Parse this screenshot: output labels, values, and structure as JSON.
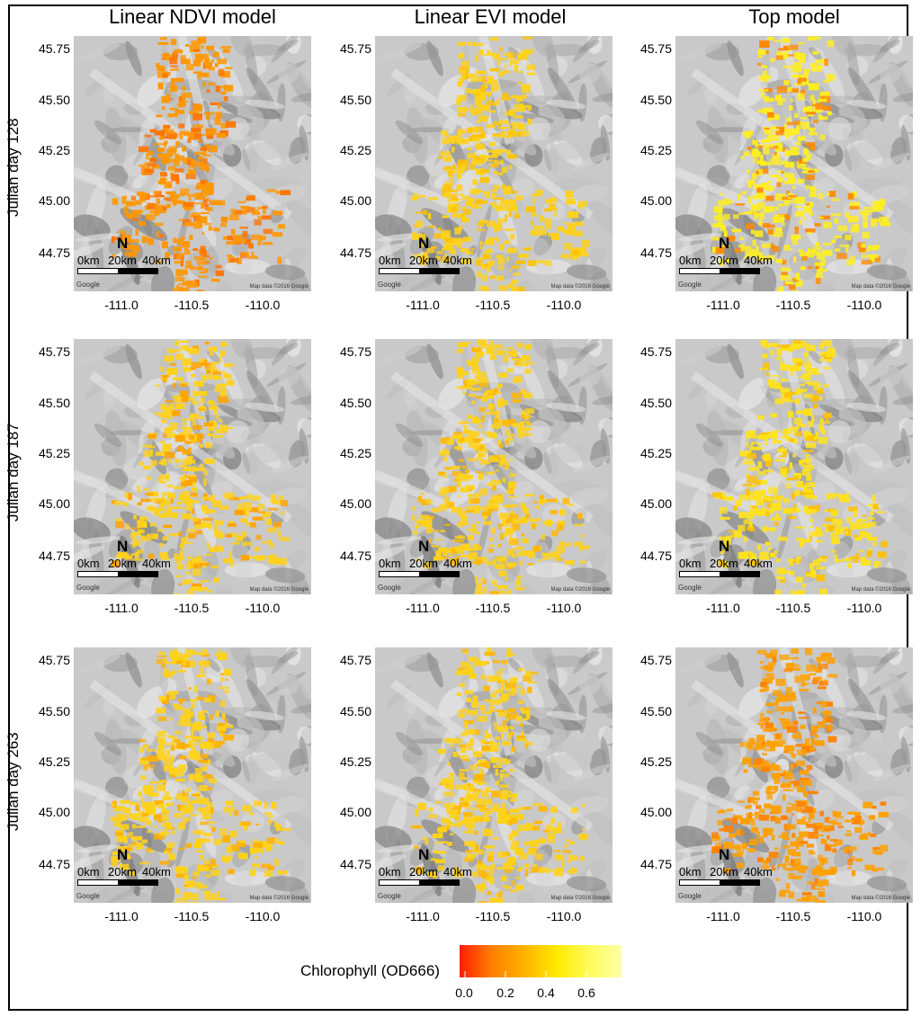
{
  "column_titles": [
    "Linear NDVI model",
    "Linear EVI model",
    "Top model"
  ],
  "row_titles": [
    "Julian day 128",
    "Julian day 187",
    "Julian day 263"
  ],
  "y_ticks": [
    "45.75",
    "45.50",
    "45.25",
    "45.00",
    "44.75"
  ],
  "x_ticks": [
    "-111.0",
    "-110.5",
    "-110.0"
  ],
  "scale_labels": [
    "0km",
    "20km",
    "40km"
  ],
  "north_symbol": "N",
  "credit_google": "Google",
  "credit_right": "Map data ©2016 Google",
  "legend": {
    "title": "Chlorophyll (OD666)",
    "ticks": [
      "0.0",
      "0.2",
      "0.4",
      "0.6"
    ],
    "colors": [
      "#ff1f00",
      "#ff7f00",
      "#ffb300",
      "#ffea00",
      "#fffb5a",
      "#ffffa8"
    ]
  },
  "panels": [
    {
      "row": 0,
      "col": 0,
      "overlay_color": "#ff9700",
      "accent_color": "#ff7400"
    },
    {
      "row": 0,
      "col": 1,
      "overlay_color": "#ffd21a",
      "accent_color": "#ffc200"
    },
    {
      "row": 0,
      "col": 2,
      "overlay_color": "#ffee20",
      "accent_color": "#ff8a00"
    },
    {
      "row": 1,
      "col": 0,
      "overlay_color": "#ffd21a",
      "accent_color": "#ffa300"
    },
    {
      "row": 1,
      "col": 1,
      "overlay_color": "#ffd21a",
      "accent_color": "#ffb800"
    },
    {
      "row": 1,
      "col": 2,
      "overlay_color": "#ffe21c",
      "accent_color": "#ffc000"
    },
    {
      "row": 2,
      "col": 0,
      "overlay_color": "#ffd21a",
      "accent_color": "#ffb000"
    },
    {
      "row": 2,
      "col": 1,
      "overlay_color": "#ffd21a",
      "accent_color": "#ffb800"
    },
    {
      "row": 2,
      "col": 2,
      "overlay_color": "#ffa000",
      "accent_color": "#ff8200"
    }
  ]
}
